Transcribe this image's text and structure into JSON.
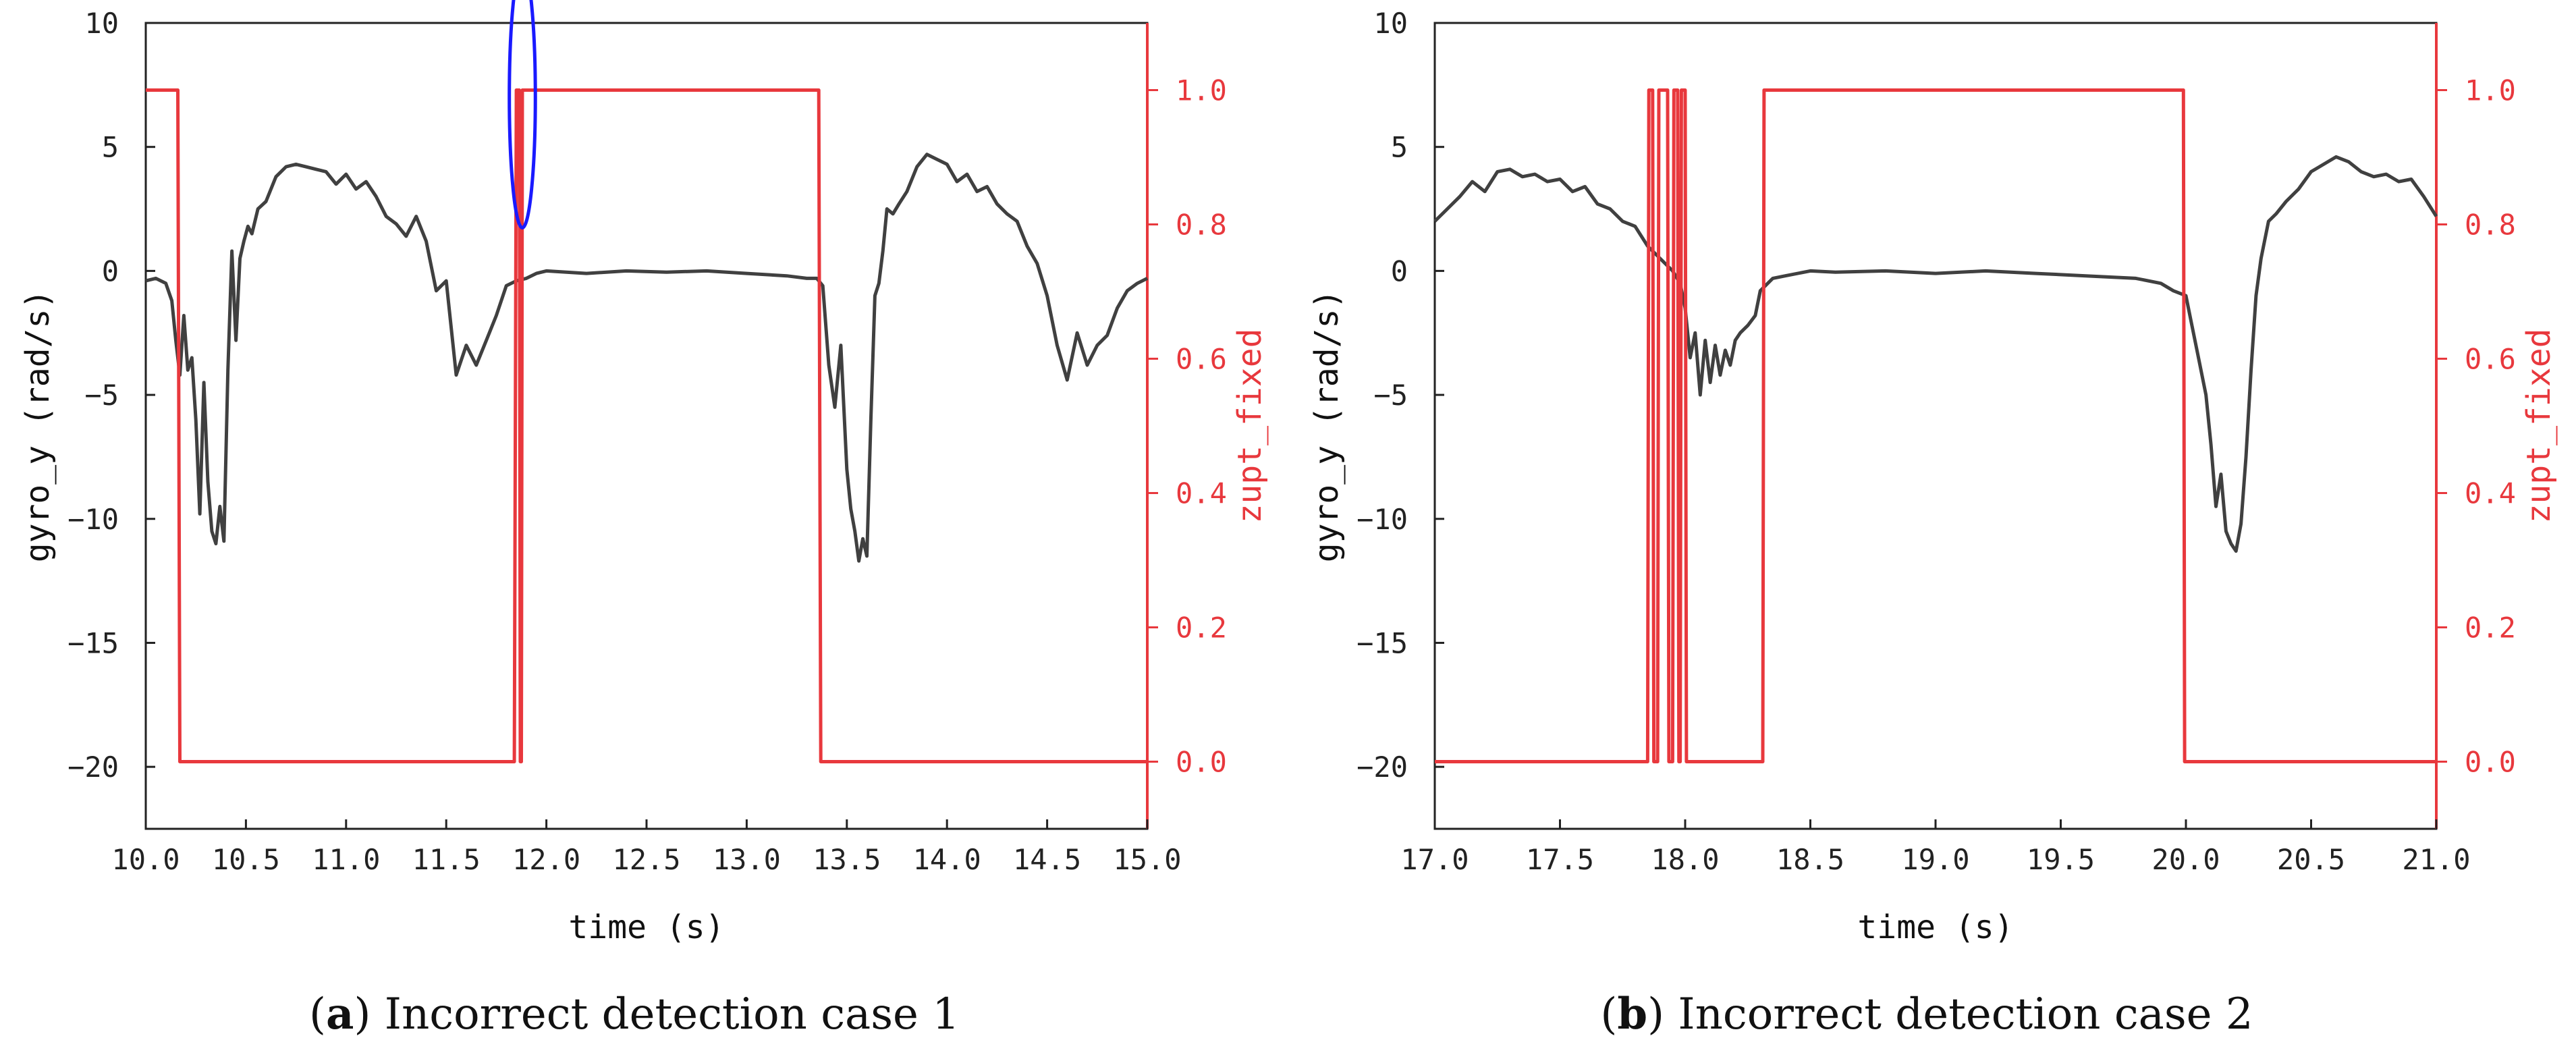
{
  "colors": {
    "gyro": "#404040",
    "zupt": "#e8383d",
    "axis_right": "#e8383d",
    "highlight": "#1a1aff"
  },
  "chart_data": [
    {
      "id": "a",
      "type": "line",
      "caption_tag": "a",
      "caption_text": "Incorrect detection case 1",
      "xlabel": "time (s)",
      "ylabel_left": "gyro_y (rad/s)",
      "ylabel_right": "zupt_fixed",
      "xlim": [
        10.0,
        15.0
      ],
      "ylim_left": [
        -22.5,
        10
      ],
      "ylim_right": [
        -0.1,
        1.1
      ],
      "xticks": [
        "10.0",
        "10.5",
        "11.0",
        "11.5",
        "12.0",
        "12.5",
        "13.0",
        "13.5",
        "14.0",
        "14.5",
        "15.0"
      ],
      "xtick_values": [
        10.0,
        10.5,
        11.0,
        11.5,
        12.0,
        12.5,
        13.0,
        13.5,
        14.0,
        14.5,
        15.0
      ],
      "yticks_left": [
        "10",
        "5",
        "0",
        "−5",
        "−10",
        "−15",
        "−20"
      ],
      "ytick_left_values": [
        10,
        5,
        0,
        -5,
        -10,
        -15,
        -20
      ],
      "yticks_right": [
        "1.0",
        "0.8",
        "0.6",
        "0.4",
        "0.2",
        "0.0"
      ],
      "ytick_right_values": [
        1.0,
        0.8,
        0.6,
        0.4,
        0.2,
        0.0
      ],
      "series": [
        {
          "name": "gyro_y",
          "axis": "left",
          "x": [
            10.0,
            10.05,
            10.1,
            10.13,
            10.15,
            10.17,
            10.19,
            10.21,
            10.23,
            10.25,
            10.27,
            10.29,
            10.31,
            10.33,
            10.35,
            10.37,
            10.39,
            10.41,
            10.43,
            10.45,
            10.47,
            10.49,
            10.51,
            10.53,
            10.56,
            10.6,
            10.65,
            10.7,
            10.75,
            10.8,
            10.85,
            10.9,
            10.95,
            11.0,
            11.05,
            11.1,
            11.15,
            11.2,
            11.25,
            11.3,
            11.35,
            11.4,
            11.45,
            11.5,
            11.55,
            11.6,
            11.65,
            11.7,
            11.75,
            11.8,
            11.85,
            11.9,
            11.95,
            12.0,
            12.2,
            12.4,
            12.6,
            12.8,
            13.0,
            13.2,
            13.3,
            13.35,
            13.38,
            13.41,
            13.44,
            13.47,
            13.5,
            13.52,
            13.54,
            13.56,
            13.58,
            13.6,
            13.62,
            13.64,
            13.66,
            13.68,
            13.7,
            13.73,
            13.76,
            13.8,
            13.85,
            13.9,
            13.95,
            14.0,
            14.05,
            14.1,
            14.15,
            14.2,
            14.25,
            14.3,
            14.35,
            14.4,
            14.45,
            14.5,
            14.55,
            14.6,
            14.65,
            14.7,
            14.75,
            14.8,
            14.85,
            14.9,
            14.95,
            15.0
          ],
          "values": [
            -0.4,
            -0.3,
            -0.5,
            -1.2,
            -2.8,
            -4.2,
            -1.8,
            -4.0,
            -3.5,
            -6.0,
            -9.8,
            -4.5,
            -8.5,
            -10.5,
            -11.0,
            -9.5,
            -10.9,
            -4.0,
            0.8,
            -2.8,
            0.5,
            1.2,
            1.8,
            1.5,
            2.5,
            2.8,
            3.8,
            4.2,
            4.3,
            4.2,
            4.1,
            4.0,
            3.5,
            3.9,
            3.3,
            3.6,
            3.0,
            2.2,
            1.9,
            1.4,
            2.2,
            1.2,
            -0.8,
            -0.4,
            -4.2,
            -3.0,
            -3.8,
            -2.8,
            -1.8,
            -0.6,
            -0.4,
            -0.3,
            -0.1,
            0.0,
            -0.1,
            0.0,
            -0.05,
            0.0,
            -0.1,
            -0.2,
            -0.3,
            -0.3,
            -0.6,
            -3.8,
            -5.5,
            -3.0,
            -8.0,
            -9.6,
            -10.5,
            -11.7,
            -10.8,
            -11.5,
            -6.0,
            -1.0,
            -0.5,
            0.8,
            2.5,
            2.3,
            2.7,
            3.2,
            4.2,
            4.7,
            4.5,
            4.3,
            3.6,
            3.9,
            3.2,
            3.4,
            2.7,
            2.3,
            2.0,
            1.0,
            0.3,
            -1.0,
            -3.0,
            -4.4,
            -2.5,
            -3.8,
            -3.0,
            -2.6,
            -1.5,
            -0.8,
            -0.5,
            -0.3
          ]
        },
        {
          "name": "zupt_fixed",
          "axis": "right",
          "step": true,
          "x": [
            10.0,
            10.16,
            10.17,
            11.84,
            11.85,
            11.865,
            11.87,
            11.875,
            11.88,
            11.89,
            11.9,
            13.36,
            13.37,
            15.0
          ],
          "values": [
            1,
            1,
            0,
            0,
            1,
            1,
            0,
            0,
            1,
            1,
            1,
            1,
            0,
            0
          ]
        }
      ],
      "annotation": {
        "type": "ellipse",
        "center": [
          11.88,
          0.99
        ],
        "rx_data": 0.13,
        "ry_data": 0.075
      }
    },
    {
      "id": "b",
      "type": "line",
      "caption_tag": "b",
      "caption_text": "Incorrect detection case 2",
      "xlabel": "time (s)",
      "ylabel_left": "gyro_y (rad/s)",
      "ylabel_right": "zupt_fixed",
      "xlim": [
        17.0,
        21.0
      ],
      "ylim_left": [
        -22.5,
        10
      ],
      "ylim_right": [
        -0.1,
        1.1
      ],
      "xticks": [
        "17.0",
        "17.5",
        "18.0",
        "18.5",
        "19.0",
        "19.5",
        "20.0",
        "20.5",
        "21.0"
      ],
      "xtick_values": [
        17.0,
        17.5,
        18.0,
        18.5,
        19.0,
        19.5,
        20.0,
        20.5,
        21.0
      ],
      "yticks_left": [
        "10",
        "5",
        "0",
        "−5",
        "−10",
        "−15",
        "−20"
      ],
      "ytick_left_values": [
        10,
        5,
        0,
        -5,
        -10,
        -15,
        -20
      ],
      "yticks_right": [
        "1.0",
        "0.8",
        "0.6",
        "0.4",
        "0.2",
        "0.0"
      ],
      "ytick_right_values": [
        1.0,
        0.8,
        0.6,
        0.4,
        0.2,
        0.0
      ],
      "series": [
        {
          "name": "gyro_y",
          "axis": "left",
          "x": [
            17.0,
            17.05,
            17.1,
            17.15,
            17.2,
            17.25,
            17.3,
            17.35,
            17.4,
            17.45,
            17.5,
            17.55,
            17.6,
            17.65,
            17.7,
            17.75,
            17.8,
            17.85,
            17.9,
            17.95,
            17.98,
            18.0,
            18.02,
            18.04,
            18.06,
            18.08,
            18.1,
            18.12,
            18.14,
            18.16,
            18.18,
            18.2,
            18.22,
            18.25,
            18.28,
            18.3,
            18.35,
            18.4,
            18.5,
            18.6,
            18.8,
            19.0,
            19.2,
            19.4,
            19.6,
            19.8,
            19.9,
            19.95,
            20.0,
            20.02,
            20.05,
            20.08,
            20.1,
            20.12,
            20.14,
            20.16,
            20.18,
            20.2,
            20.22,
            20.24,
            20.26,
            20.28,
            20.3,
            20.33,
            20.36,
            20.4,
            20.45,
            20.5,
            20.55,
            20.6,
            20.65,
            20.7,
            20.75,
            20.8,
            20.85,
            20.9,
            20.95,
            21.0
          ],
          "values": [
            2.0,
            2.5,
            3.0,
            3.6,
            3.2,
            4.0,
            4.1,
            3.8,
            3.9,
            3.6,
            3.7,
            3.2,
            3.4,
            2.7,
            2.5,
            2.0,
            1.8,
            1.0,
            0.5,
            0.0,
            -0.5,
            -1.5,
            -3.5,
            -2.5,
            -5.0,
            -2.8,
            -4.5,
            -3.0,
            -4.2,
            -3.2,
            -3.8,
            -2.8,
            -2.5,
            -2.2,
            -1.8,
            -0.8,
            -0.3,
            -0.2,
            0.0,
            -0.05,
            0.0,
            -0.1,
            0.0,
            -0.1,
            -0.2,
            -0.3,
            -0.5,
            -0.8,
            -1.0,
            -2.0,
            -3.5,
            -5.0,
            -7.0,
            -9.5,
            -8.2,
            -10.5,
            -11.0,
            -11.3,
            -10.2,
            -7.5,
            -4.0,
            -1.0,
            0.5,
            2.0,
            2.3,
            2.8,
            3.3,
            4.0,
            4.3,
            4.6,
            4.4,
            4.0,
            3.8,
            3.9,
            3.6,
            3.7,
            3.0,
            2.2
          ]
        },
        {
          "name": "zupt_fixed",
          "axis": "right",
          "step": true,
          "x": [
            17.0,
            17.85,
            17.855,
            17.87,
            17.875,
            17.89,
            17.895,
            17.93,
            17.935,
            17.95,
            17.955,
            17.97,
            17.975,
            17.98,
            17.985,
            18.0,
            18.005,
            18.31,
            18.315,
            19.99,
            19.995,
            21.0
          ],
          "values": [
            0,
            0,
            1,
            1,
            0,
            0,
            1,
            1,
            0,
            0,
            1,
            1,
            0,
            0,
            1,
            1,
            0,
            0,
            1,
            1,
            0,
            0
          ]
        }
      ]
    }
  ]
}
